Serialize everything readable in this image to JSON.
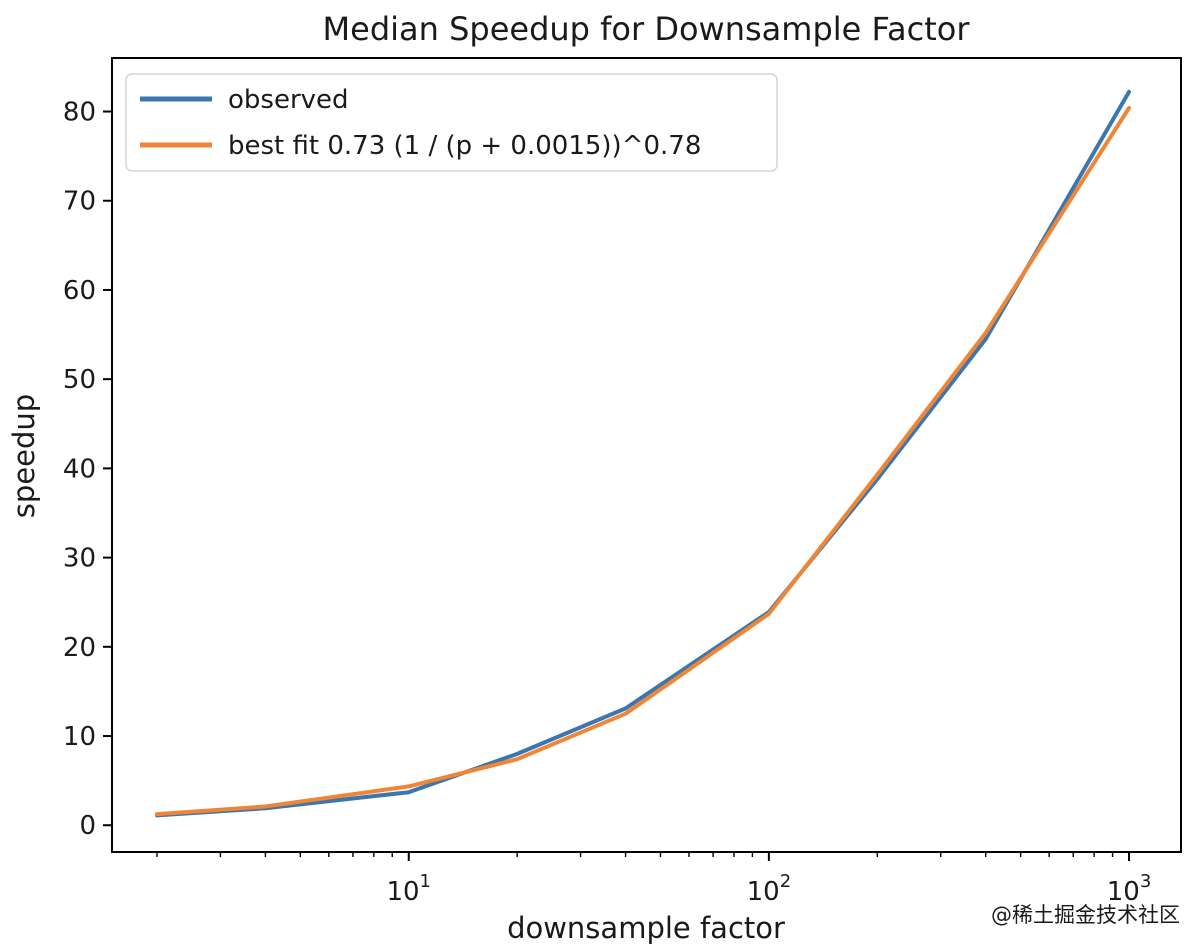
{
  "watermark": "@稀土掘金技术社区",
  "chart_data": {
    "type": "line",
    "title": "Median Speedup for Downsample Factor",
    "xlabel": "downsample factor",
    "ylabel": "speedup",
    "xscale": "log",
    "grid": false,
    "legend_position": "upper left",
    "x": [
      2,
      4,
      10,
      20,
      40,
      100,
      200,
      400,
      1000
    ],
    "series": [
      {
        "name": "observed",
        "color": "#3b76af",
        "values": [
          1.1,
          1.9,
          3.7,
          8.0,
          13.1,
          23.9,
          38.8,
          54.5,
          82.2
        ]
      },
      {
        "name": "best fit 0.73 (1 / (p + 0.0015))^0.78",
        "color": "#ee8636",
        "values": [
          1.25,
          2.1,
          4.35,
          7.4,
          12.5,
          23.7,
          39.3,
          55.2,
          80.4
        ]
      }
    ],
    "xlim": [
      1.5,
      1394
    ],
    "ylim": [
      -3,
      86
    ],
    "yticks": [
      0,
      10,
      20,
      30,
      40,
      50,
      60,
      70,
      80
    ],
    "xticks": [
      10,
      100,
      1000
    ],
    "xtick_labels": [
      "10^1",
      "10^2",
      "10^3"
    ],
    "axis_color": "#000000",
    "text_color": "#1a1a1a",
    "watermark_color": "#c4c4c4",
    "legend_border_color": "#d5d5d5"
  }
}
